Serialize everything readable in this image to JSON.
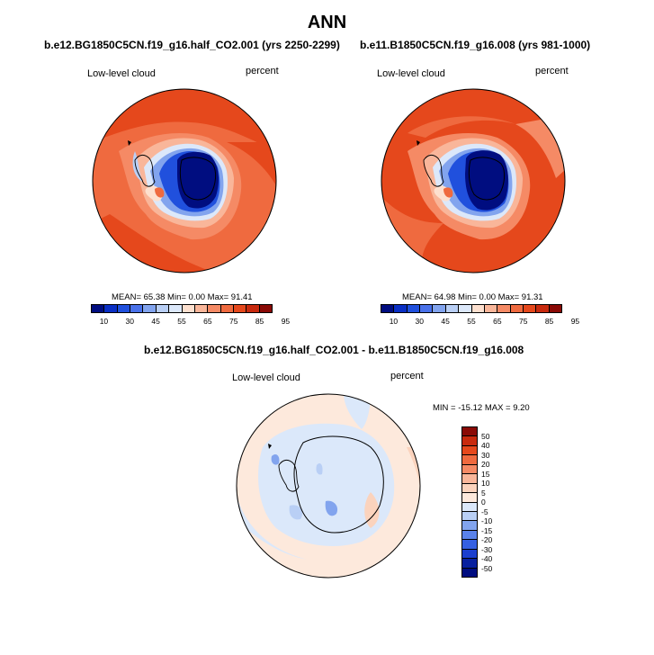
{
  "title": "ANN",
  "panels": [
    {
      "case": "b.e12.BG1850C5CN.f19_g16.half_CO2.001 (yrs 2250-2299)",
      "variable": "Low-level cloud",
      "units": "percent",
      "stats": "MEAN=  65.38  Min=   0.00  Max=  91.41",
      "colorbar": {
        "labels": [
          "10",
          "30",
          "45",
          "55",
          "65",
          "75",
          "85",
          "95"
        ],
        "colors": [
          "#000d80",
          "#0a2fc4",
          "#2050dd",
          "#4a72ea",
          "#82a4ee",
          "#b9cff5",
          "#dce8fa",
          "#fde0cf",
          "#f9b69a",
          "#f58a65",
          "#ef6a3f",
          "#e5481c",
          "#c82a0e",
          "#8a0a06"
        ]
      }
    },
    {
      "case": "b.e11.B1850C5CN.f19_g16.008 (yrs 981-1000)",
      "variable": "Low-level cloud",
      "units": "percent",
      "stats": "MEAN=  64.98  Min=   0.00  Max=  91.31",
      "colorbar": {
        "labels": [
          "10",
          "30",
          "45",
          "55",
          "65",
          "75",
          "85",
          "95"
        ],
        "colors": [
          "#000d80",
          "#0a2fc4",
          "#2050dd",
          "#4a72ea",
          "#82a4ee",
          "#b9cff5",
          "#dce8fa",
          "#fde0cf",
          "#f9b69a",
          "#f58a65",
          "#ef6a3f",
          "#e5481c",
          "#c82a0e",
          "#8a0a06"
        ]
      }
    }
  ],
  "diff": {
    "case": "b.e12.BG1850C5CN.f19_g16.half_CO2.001 - b.e11.B1850C5CN.f19_g16.008",
    "variable": "Low-level cloud",
    "units": "percent",
    "stats": "MIN = -15.12 MAX =   9.20",
    "colorbar": {
      "labels": [
        "50",
        "40",
        "30",
        "20",
        "15",
        "10",
        "5",
        "0",
        "-5",
        "-10",
        "-15",
        "-20",
        "-30",
        "-40",
        "-50"
      ],
      "colors": [
        "#8a0a06",
        "#c82a0e",
        "#e5481c",
        "#ef6a3f",
        "#f58a65",
        "#f9b69a",
        "#fbd3bd",
        "#fde9dc",
        "#dbe8fa",
        "#b9cff5",
        "#82a4ee",
        "#5a82ea",
        "#3560e2",
        "#1b3fcf",
        "#08209f",
        "#000d80"
      ]
    }
  }
}
